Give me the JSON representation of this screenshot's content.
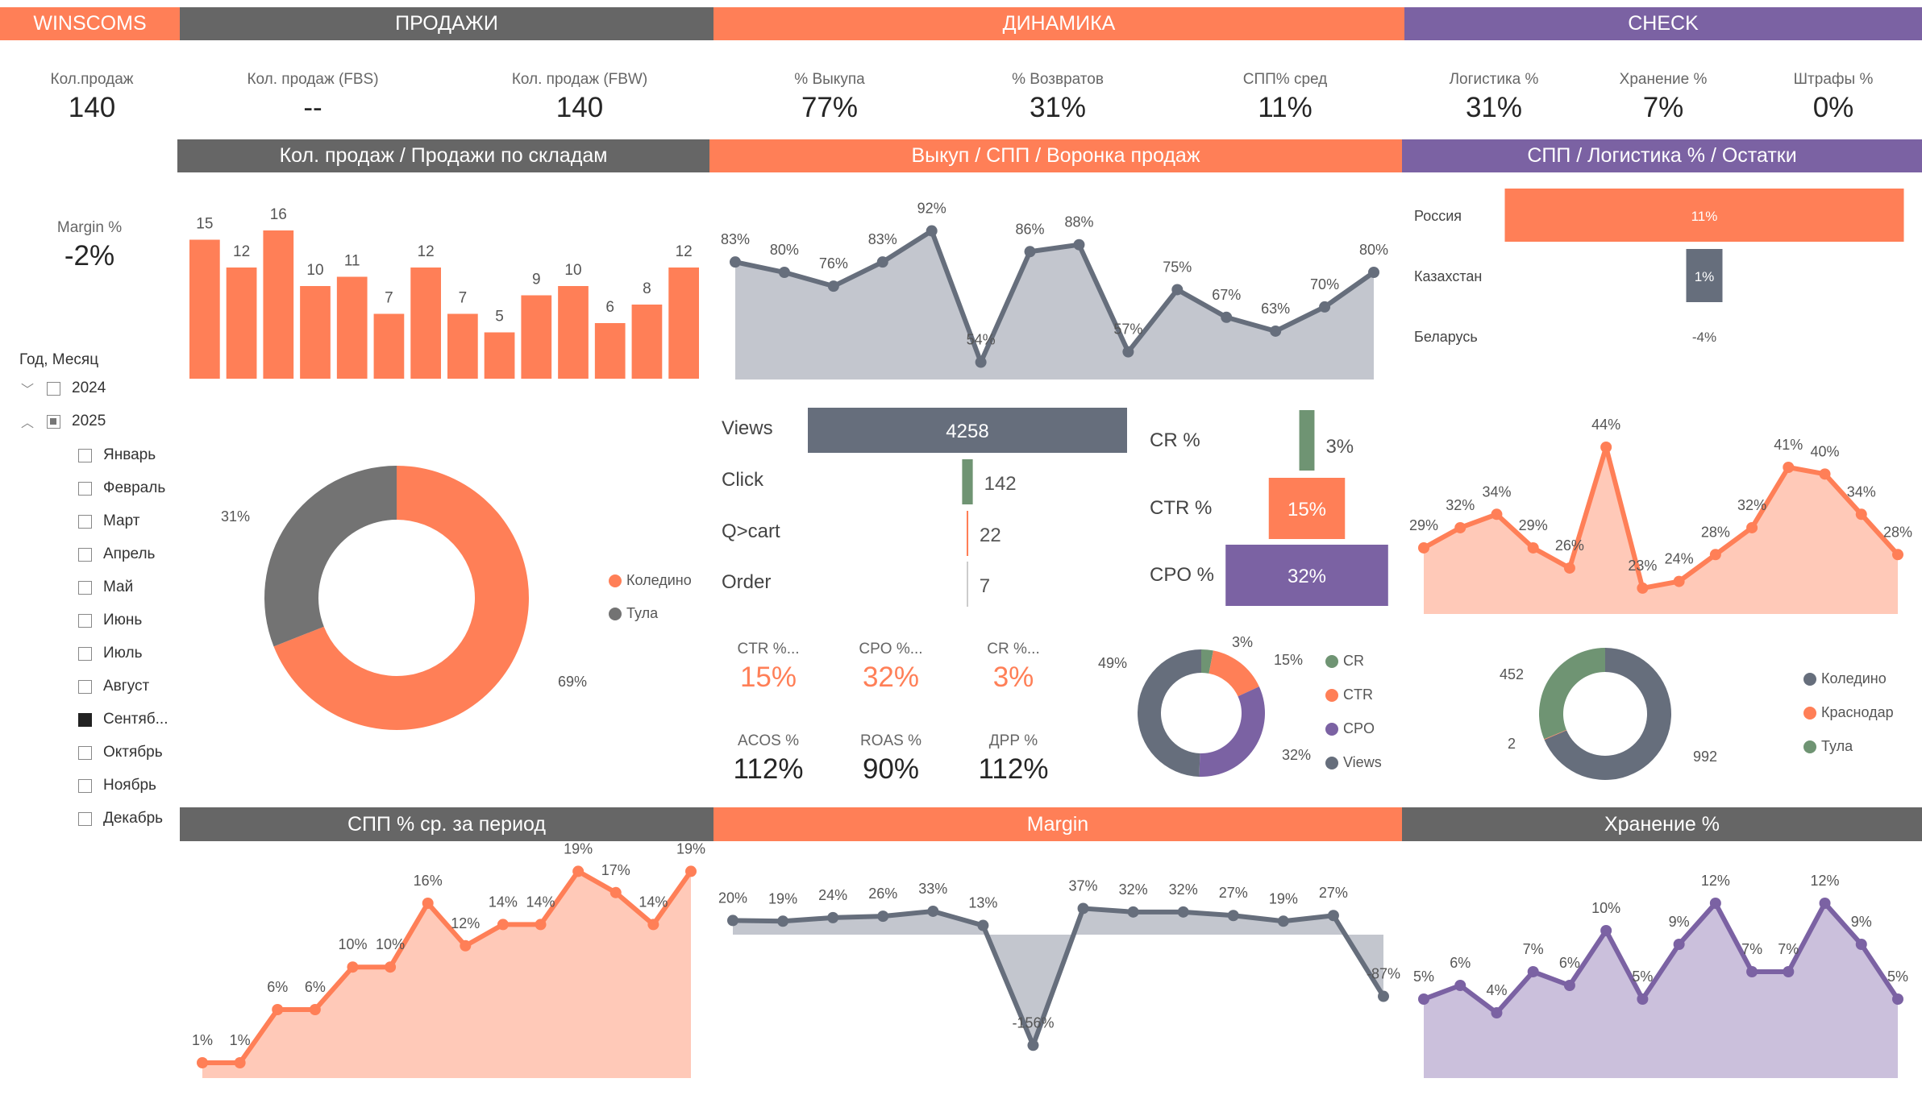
{
  "header": {
    "brand": "WINSCOMS",
    "sales": "ПРОДАЖИ",
    "dynamics": "ДИНАМИКА",
    "check": "CHECK"
  },
  "kpis": [
    {
      "label": "Кол.продаж",
      "value": "140"
    },
    {
      "label": "Кол. продаж (FBS)",
      "value": "--"
    },
    {
      "label": "Кол. продаж (FBW)",
      "value": "140"
    },
    {
      "label": "% Выкупа",
      "value": "77%"
    },
    {
      "label": "% Возвратов",
      "value": "31%"
    },
    {
      "label": "СПП% сред",
      "value": "11%"
    },
    {
      "label": "Логистика %",
      "value": "31%"
    },
    {
      "label": "Хранение %",
      "value": "7%"
    },
    {
      "label": "Штрафы %",
      "value": "0%"
    }
  ],
  "section_titles": {
    "sales": "Кол. продаж / Продажи по складам",
    "funnel": "Выкуп / СПП  / Воронка продаж",
    "check": "СПП / Логистика % / Остатки",
    "spp": "СПП % ср. за период",
    "margin": "Margin",
    "storage": "Хранение %"
  },
  "margin_kpi": {
    "label": "Margin %",
    "value": "-2%"
  },
  "slicer": {
    "title": "Год, Месяц",
    "years": [
      {
        "label": "2024",
        "expanded": false,
        "state": "unchecked"
      },
      {
        "label": "2025",
        "expanded": true,
        "state": "partial"
      }
    ],
    "months": [
      {
        "label": "Январь",
        "checked": false
      },
      {
        "label": "Февраль",
        "checked": false
      },
      {
        "label": "Март",
        "checked": false
      },
      {
        "label": "Апрель",
        "checked": false
      },
      {
        "label": "Май",
        "checked": false
      },
      {
        "label": "Июнь",
        "checked": false
      },
      {
        "label": "Июль",
        "checked": false
      },
      {
        "label": "Август",
        "checked": false
      },
      {
        "label": "Сентяб...",
        "checked": true
      },
      {
        "label": "Октябрь",
        "checked": false
      },
      {
        "label": "Ноябрь",
        "checked": false
      },
      {
        "label": "Декабрь",
        "checked": false
      }
    ]
  },
  "funnel_kpis": [
    {
      "label": "CTR %...",
      "value": "15%",
      "accent": true
    },
    {
      "label": "CPO %...",
      "value": "32%",
      "accent": true
    },
    {
      "label": "CR %...",
      "value": "3%",
      "accent": true
    },
    {
      "label": "ACOS %",
      "value": "112%",
      "accent": false
    },
    {
      "label": "ROAS %",
      "value": "90%",
      "accent": false
    },
    {
      "label": "ДРР %",
      "value": "112%",
      "accent": false
    }
  ],
  "colors": {
    "orange": "#FF7F57",
    "gray_header": "#666666",
    "purple": "#7B62A3",
    "slate": "#666E7C",
    "green": "#6F9473",
    "orange_area": "#FFC9B8",
    "slate_area": "#C3C6CE",
    "purple_area": "#CBC0DC",
    "dark_gray": "#737373"
  },
  "chart_data": [
    {
      "id": "sales_bars",
      "type": "bar",
      "values": [
        15,
        12,
        16,
        10,
        11,
        7,
        12,
        7,
        5,
        9,
        10,
        6,
        8,
        12
      ],
      "ylim": [
        0,
        16
      ]
    },
    {
      "id": "buyout_line",
      "type": "area",
      "unit": "%",
      "values": [
        83,
        80,
        76,
        83,
        92,
        54,
        86,
        88,
        57,
        75,
        67,
        63,
        70,
        80
      ]
    },
    {
      "id": "region_bars",
      "type": "bar",
      "unit": "%",
      "categories": [
        "Россия",
        "Казахстан",
        "Беларусь"
      ],
      "values": [
        11,
        1,
        -4
      ]
    },
    {
      "id": "warehouse_donut",
      "type": "pie",
      "unit": "%",
      "categories": [
        "Коледино",
        "Тула"
      ],
      "values": [
        69,
        31
      ],
      "legend": "right"
    },
    {
      "id": "funnel",
      "type": "bar",
      "categories": [
        "Views",
        "Click",
        "Q>cart",
        "Order"
      ],
      "values": [
        4258,
        142,
        22,
        7
      ]
    },
    {
      "id": "rate_bars",
      "type": "bar",
      "unit": "%",
      "categories": [
        "CR %",
        "CTR %",
        "CPO %"
      ],
      "values": [
        3,
        15,
        32
      ]
    },
    {
      "id": "rate_donut",
      "type": "pie",
      "unit": "%",
      "categories": [
        "CR",
        "CTR",
        "CPO",
        "Views"
      ],
      "values": [
        3,
        15,
        32,
        49
      ],
      "legend": "right"
    },
    {
      "id": "logistics_line",
      "type": "area",
      "unit": "%",
      "values": [
        29,
        32,
        34,
        29,
        26,
        44,
        23,
        24,
        28,
        32,
        41,
        40,
        34,
        28
      ]
    },
    {
      "id": "stock_donut",
      "type": "pie",
      "categories": [
        "Коледино",
        "Краснодар",
        "Тула"
      ],
      "values": [
        992,
        2,
        452
      ],
      "legend": "right"
    },
    {
      "id": "spp_line",
      "type": "area",
      "unit": "%",
      "values": [
        1,
        1,
        6,
        6,
        10,
        10,
        16,
        12,
        14,
        14,
        19,
        17,
        14,
        19
      ]
    },
    {
      "id": "margin_line",
      "type": "area",
      "unit": "%",
      "values": [
        20,
        19,
        24,
        26,
        33,
        13,
        -156,
        37,
        32,
        32,
        27,
        19,
        27,
        -87
      ]
    },
    {
      "id": "storage_line",
      "type": "area",
      "unit": "%",
      "values": [
        5,
        6,
        4,
        7,
        6,
        10,
        5,
        9,
        12,
        7,
        7,
        12,
        9,
        5
      ]
    }
  ]
}
